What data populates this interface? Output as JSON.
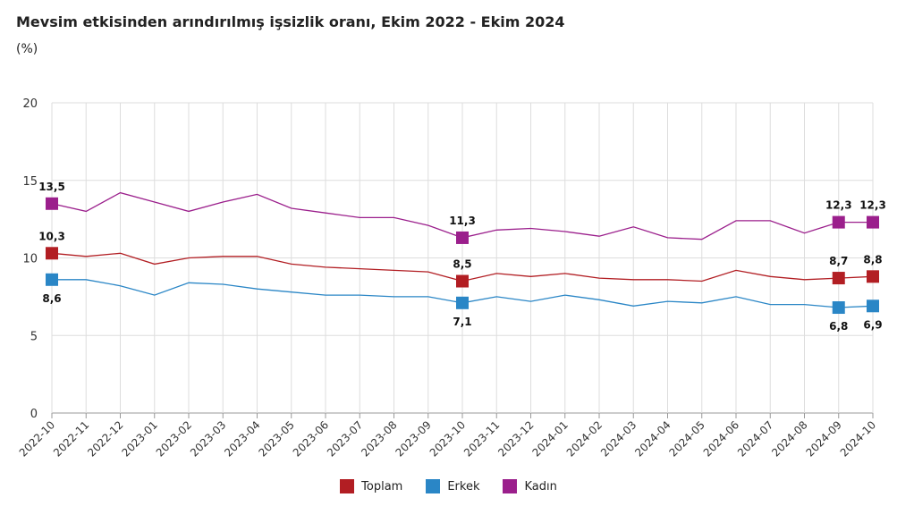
{
  "title": "Mevsim etkisinden arındırılmış işsizlik oranı, Ekim 2022 - Ekim 2024",
  "unit": "(%)",
  "colors": {
    "Toplam": "#b21e23",
    "Erkek": "#2a86c6",
    "Kadın": "#9b1f8c",
    "grid": "#dddddd",
    "axis": "#999999"
  },
  "chart_data": {
    "type": "line",
    "x": [
      "2022-10",
      "2022-11",
      "2022-12",
      "2023-01",
      "2023-02",
      "2023-03",
      "2023-04",
      "2023-05",
      "2023-06",
      "2023-07",
      "2023-08",
      "2023-09",
      "2023-10",
      "2023-11",
      "2023-12",
      "2024-01",
      "2024-02",
      "2024-03",
      "2024-04",
      "2024-05",
      "2024-06",
      "2024-07",
      "2024-08",
      "2024-09",
      "2024-10"
    ],
    "ylim": [
      0,
      20
    ],
    "yticks": [
      "0",
      "5",
      "10",
      "15",
      "20"
    ],
    "grid": true,
    "legend_position": "bottom",
    "series": [
      {
        "name": "Toplam",
        "values": [
          10.3,
          10.1,
          10.3,
          9.6,
          10.0,
          10.1,
          10.1,
          9.6,
          9.4,
          9.3,
          9.2,
          9.1,
          8.5,
          9.0,
          8.8,
          9.0,
          8.7,
          8.6,
          8.6,
          8.5,
          9.2,
          8.8,
          8.6,
          8.7,
          8.8
        ],
        "labels": [
          {
            "index": 0,
            "text": "10,3"
          },
          {
            "index": 12,
            "text": "8,5"
          },
          {
            "index": 23,
            "text": "8,7"
          },
          {
            "index": 24,
            "text": "8,8"
          }
        ]
      },
      {
        "name": "Erkek",
        "values": [
          8.6,
          8.6,
          8.2,
          7.6,
          8.4,
          8.3,
          8.0,
          7.8,
          7.6,
          7.6,
          7.5,
          7.5,
          7.1,
          7.5,
          7.2,
          7.6,
          7.3,
          6.9,
          7.2,
          7.1,
          7.5,
          7.0,
          7.0,
          6.8,
          6.9
        ],
        "labels": [
          {
            "index": 0,
            "text": "8,6"
          },
          {
            "index": 12,
            "text": "7,1"
          },
          {
            "index": 23,
            "text": "6,8"
          },
          {
            "index": 24,
            "text": "6,9"
          }
        ]
      },
      {
        "name": "Kadın",
        "values": [
          13.5,
          13.0,
          14.2,
          13.6,
          13.0,
          13.6,
          14.1,
          13.2,
          12.9,
          12.6,
          12.6,
          12.1,
          11.3,
          11.8,
          11.9,
          11.7,
          11.4,
          12.0,
          11.3,
          11.2,
          12.4,
          12.4,
          11.6,
          12.3,
          12.3
        ],
        "labels": [
          {
            "index": 0,
            "text": "13,5"
          },
          {
            "index": 12,
            "text": "11,3"
          },
          {
            "index": 23,
            "text": "12,3"
          },
          {
            "index": 24,
            "text": "12,3"
          }
        ]
      }
    ]
  }
}
